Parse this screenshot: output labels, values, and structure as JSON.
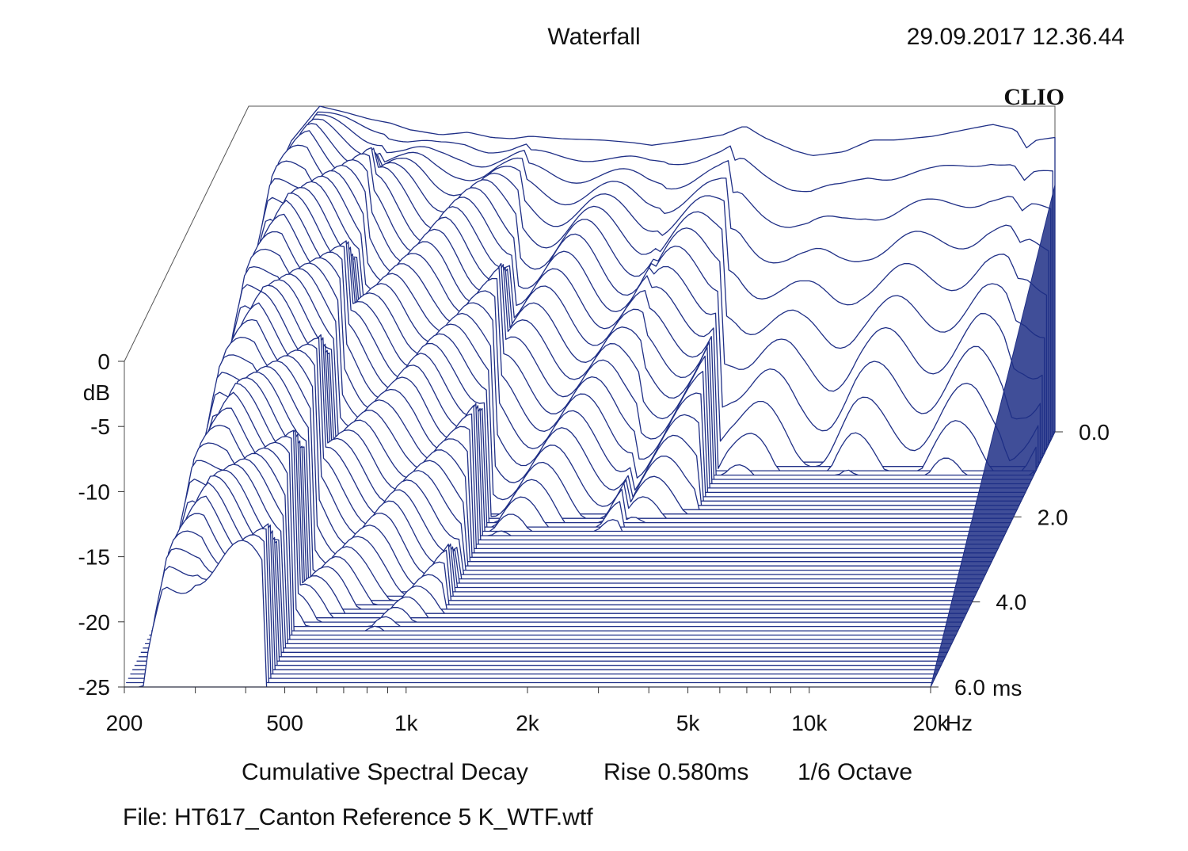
{
  "header": {
    "title": "Waterfall",
    "timestamp": "29.09.2017 12.36.44",
    "brand": "CLIO"
  },
  "chart_data": {
    "type": "waterfall",
    "title": "Waterfall",
    "subtitle": "Cumulative Spectral Decay   Rise 0.580ms   1/6 Octave",
    "analysis": "Cumulative Spectral Decay",
    "rise": "Rise 0.580ms",
    "smoothing": "1/6 Octave",
    "file": "File: HT617_Canton Reference 5 K_WTF.wtf",
    "x_axis": {
      "unit": "Hz",
      "scale": "log",
      "range": [
        200,
        20000
      ],
      "ticks": [
        {
          "value": 200,
          "label": "200"
        },
        {
          "value": 500,
          "label": "500"
        },
        {
          "value": 1000,
          "label": "1k"
        },
        {
          "value": 2000,
          "label": "2k"
        },
        {
          "value": 5000,
          "label": "5k"
        },
        {
          "value": 10000,
          "label": "10k"
        },
        {
          "value": 20000,
          "label": "20k"
        }
      ]
    },
    "y_axis": {
      "unit": "dB",
      "range": [
        -25,
        0
      ],
      "ticks": [
        {
          "value": 0,
          "label": "0"
        },
        {
          "value": -5,
          "label": "-5"
        },
        {
          "value": -10,
          "label": "-10"
        },
        {
          "value": -15,
          "label": "-15"
        },
        {
          "value": -20,
          "label": "-20"
        },
        {
          "value": -25,
          "label": "-25"
        }
      ]
    },
    "z_axis": {
      "unit": "ms",
      "range": [
        0,
        6
      ],
      "ticks": [
        {
          "value": 0,
          "label": "0.0"
        },
        {
          "value": 2,
          "label": "2.0"
        },
        {
          "value": 4,
          "label": "4.0"
        },
        {
          "value": 6,
          "label": "6.0"
        }
      ]
    },
    "slices": 60,
    "line_color": "#1f2f86",
    "initial_response_db": [
      [
        210,
        -18
      ],
      [
        230,
        -9
      ],
      [
        250,
        -3
      ],
      [
        300,
        0
      ],
      [
        350,
        -0.5
      ],
      [
        400,
        -1
      ],
      [
        450,
        -1.3
      ],
      [
        500,
        -1.8
      ],
      [
        600,
        -2.2
      ],
      [
        700,
        -2
      ],
      [
        800,
        -2.4
      ],
      [
        900,
        -2.5
      ],
      [
        1000,
        -2.3
      ],
      [
        1200,
        -2.5
      ],
      [
        1500,
        -2.6
      ],
      [
        1800,
        -2.8
      ],
      [
        2000,
        -3
      ],
      [
        2500,
        -2.6
      ],
      [
        3000,
        -2.2
      ],
      [
        3400,
        -1.5
      ],
      [
        3800,
        -2.4
      ],
      [
        4500,
        -3.4
      ],
      [
        5000,
        -3.8
      ],
      [
        6000,
        -3.5
      ],
      [
        7000,
        -2.6
      ],
      [
        8000,
        -2.6
      ],
      [
        10000,
        -2.3
      ],
      [
        12000,
        -1.8
      ],
      [
        14000,
        -1.4
      ],
      [
        16000,
        -1.8
      ],
      [
        17000,
        -3.2
      ],
      [
        18000,
        -2.6
      ],
      [
        20000,
        -2.4
      ]
    ]
  }
}
